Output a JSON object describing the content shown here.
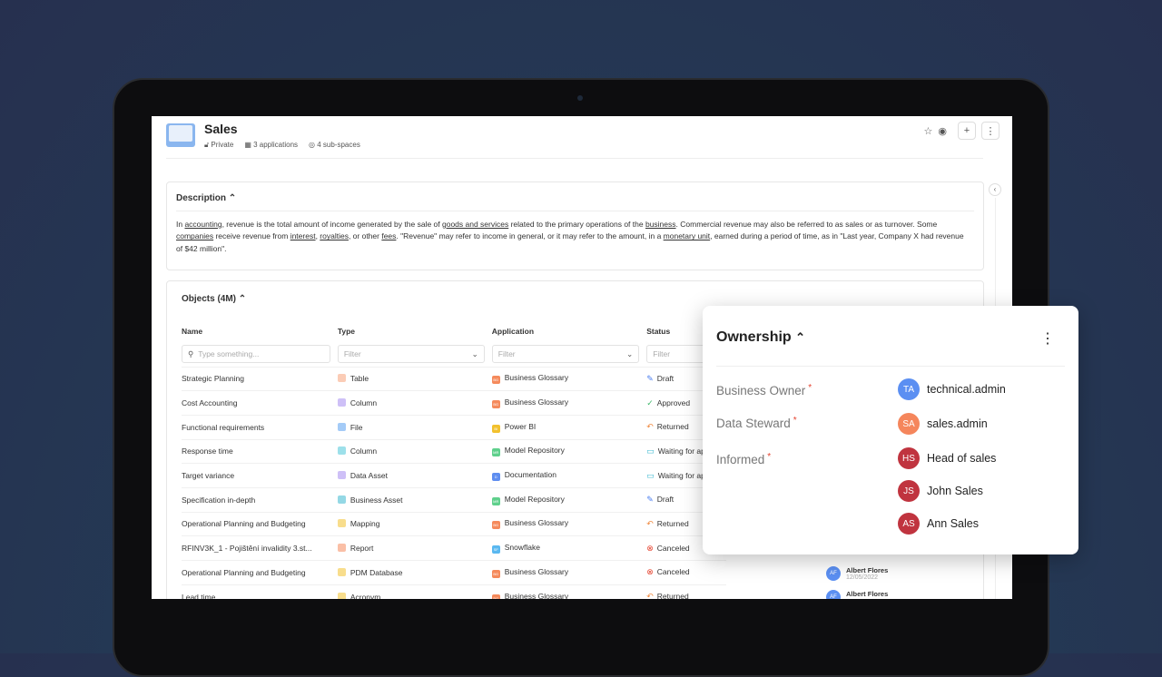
{
  "space": {
    "title": "Sales",
    "privacy": "Private",
    "applications": "3 applications",
    "subspaces": "4 sub-spaces"
  },
  "description": {
    "heading": "Description",
    "text_parts": [
      "In ",
      "accounting",
      ", revenue is the total amount of income generated by the sale of ",
      "goods and services",
      " related to the primary operations of the ",
      "business",
      ". Commercial revenue may also be referred to as sales or as turnover. Some ",
      "companies",
      " receive revenue from ",
      "interest",
      ", ",
      "royalties",
      ", or other ",
      "fees",
      ". \"Revenue\" may refer to income in general, or it may refer to the amount, in a ",
      "monetary unit",
      ", earned during a period of time, as in \"Last year, Company X had revenue of $42 million\"."
    ]
  },
  "objects": {
    "heading": "Objects (4M)",
    "columns": [
      "Name",
      "Type",
      "Application",
      "Status"
    ],
    "name_placeholder": "Type something...",
    "filter_placeholder": "Filter",
    "rows": [
      {
        "name": "Strategic Planning",
        "type": "Table",
        "type_color": "#f7a27a",
        "app": "Business Glossary",
        "app_abbr": "BG",
        "app_color": "#f58a5c",
        "status": "Draft",
        "status_icon": "✎",
        "status_color": "#4a7ef0"
      },
      {
        "name": "Cost Accounting",
        "type": "Column",
        "type_color": "#a58cf0",
        "app": "Business Glossary",
        "app_abbr": "BG",
        "app_color": "#f58a5c",
        "status": "Approved",
        "status_icon": "✓",
        "status_color": "#3fb96b"
      },
      {
        "name": "Functional requirements",
        "type": "File",
        "type_color": "#5aa0f0",
        "app": "Power BI",
        "app_abbr": "BI",
        "app_color": "#f2c12e",
        "status": "Returned",
        "status_icon": "↶",
        "status_color": "#f08a40"
      },
      {
        "name": "Response time",
        "type": "Column",
        "type_color": "#4cc6d8",
        "app": "Model Repository",
        "app_abbr": "MR",
        "app_color": "#5fd08c",
        "status": "Waiting for approval",
        "status_icon": "▭",
        "status_color": "#3cb8d0"
      },
      {
        "name": "Target variance",
        "type": "Data Asset",
        "type_color": "#a58cf0",
        "app": "Documentation",
        "app_abbr": "D",
        "app_color": "#5f8ef0",
        "status": "Waiting for approval",
        "status_icon": "▭",
        "status_color": "#3cb8d0"
      },
      {
        "name": "Specification in-depth",
        "type": "Business Asset",
        "type_color": "#3cb8d0",
        "app": "Model Repository",
        "app_abbr": "MR",
        "app_color": "#5fd08c",
        "status": "Draft",
        "status_icon": "✎",
        "status_color": "#4a7ef0"
      },
      {
        "name": "Operational Planning and Budgeting",
        "type": "Mapping",
        "type_color": "#f2c12e",
        "app": "Business Glossary",
        "app_abbr": "BG",
        "app_color": "#f58a5c",
        "status": "Returned",
        "status_icon": "↶",
        "status_color": "#f08a40"
      },
      {
        "name": "RFINV3K_1 - Pojištění invalidity 3.st...",
        "type": "Report",
        "type_color": "#f58a5c",
        "app": "Snowflake",
        "app_abbr": "SF",
        "app_color": "#5ab8f0",
        "status": "Canceled",
        "status_icon": "⊗",
        "status_color": "#e5432f"
      },
      {
        "name": "Operational Planning and Budgeting",
        "type": "PDM Database",
        "type_color": "#f2c12e",
        "app": "Business Glossary",
        "app_abbr": "BG",
        "app_color": "#f58a5c",
        "status": "Canceled",
        "status_icon": "⊗",
        "status_color": "#e5432f",
        "user": "Albert Flores",
        "user_initials": "AF",
        "date": "12/05/2022"
      },
      {
        "name": "Lead time",
        "type": "Acronym",
        "type_color": "#f2c12e",
        "app": "Business Glossary",
        "app_abbr": "BG",
        "app_color": "#f58a5c",
        "status": "Returned",
        "status_icon": "↶",
        "status_color": "#f08a40",
        "user": "Albert Flores",
        "user_initials": "AF"
      }
    ]
  },
  "ownership": {
    "title": "Ownership",
    "roles": [
      {
        "label": "Business Owner"
      },
      {
        "label": "Data Steward"
      },
      {
        "label": "Informed"
      }
    ],
    "people": [
      {
        "initials": "TA",
        "name": "technical.admin",
        "color": "#5b8ff2"
      },
      {
        "initials": "SA",
        "name": "sales.admin",
        "color": "#f5865c"
      },
      {
        "initials": "HS",
        "name": "Head of sales",
        "color": "#c0343f"
      },
      {
        "initials": "JS",
        "name": "John Sales",
        "color": "#c0343f"
      },
      {
        "initials": "AS",
        "name": "Ann Sales",
        "color": "#c0343f"
      }
    ]
  }
}
